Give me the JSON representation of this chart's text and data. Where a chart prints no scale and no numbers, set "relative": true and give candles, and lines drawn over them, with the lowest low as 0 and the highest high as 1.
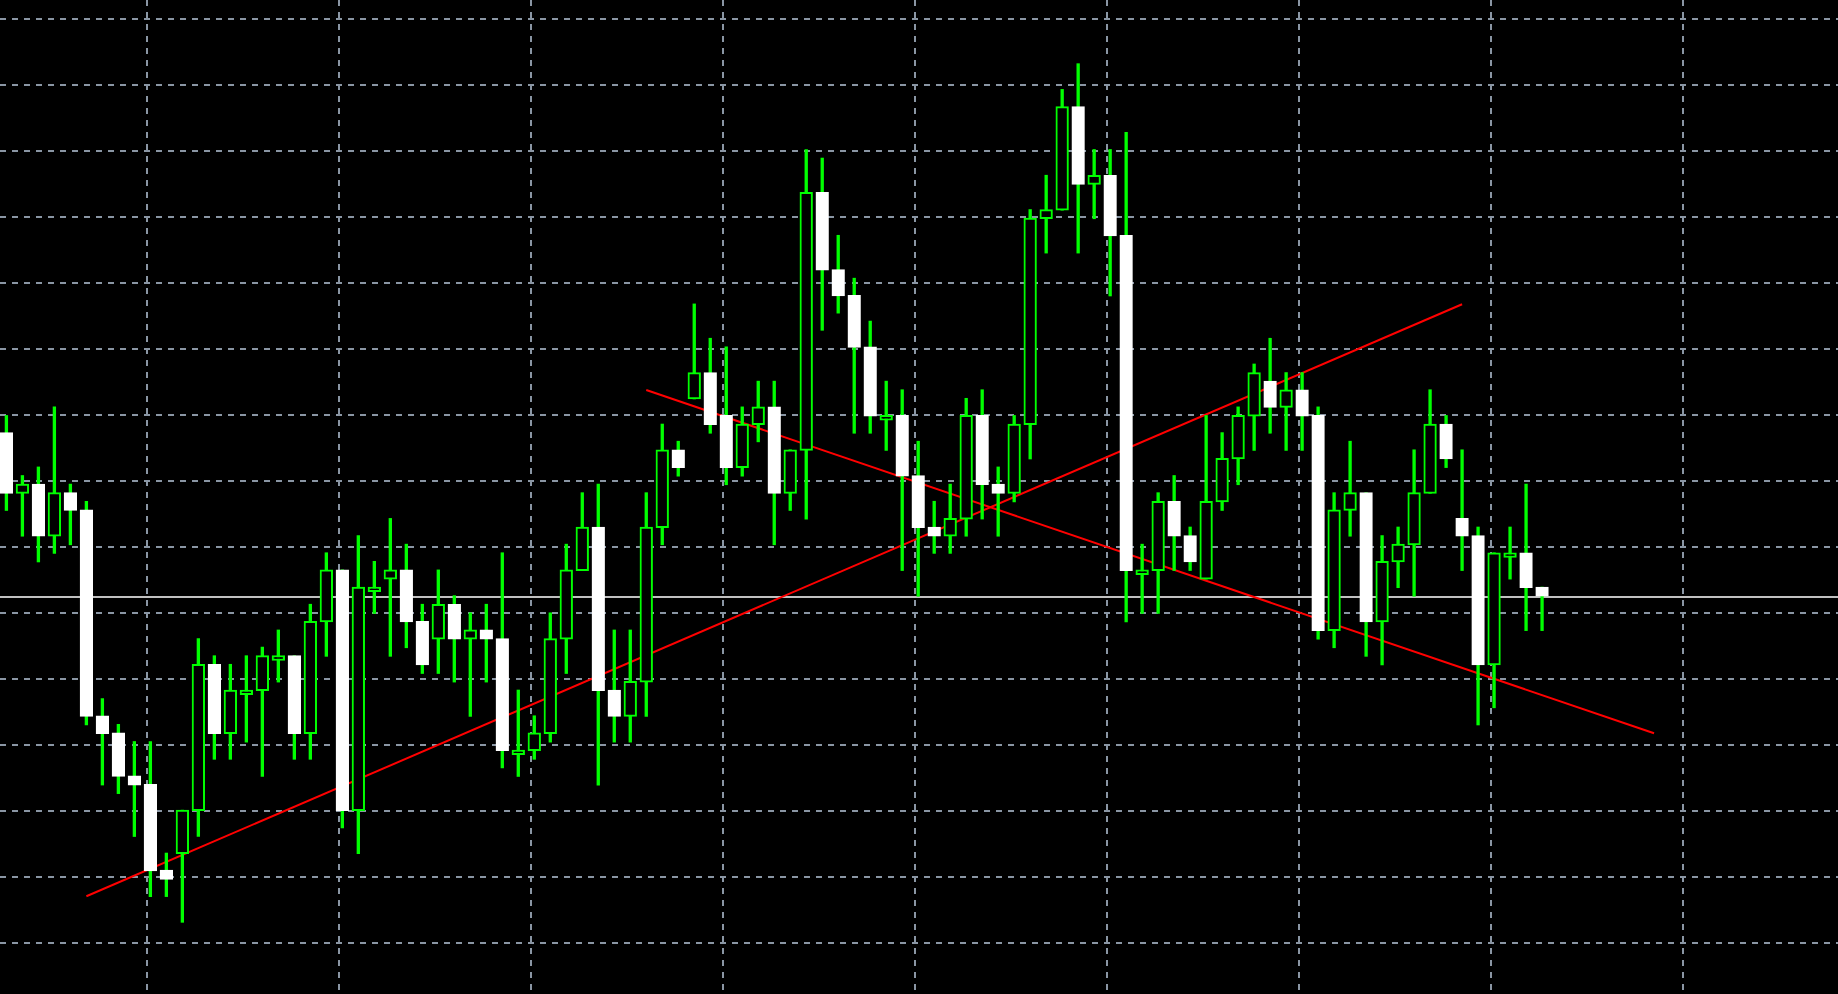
{
  "chart_data": {
    "type": "candlestick",
    "relative": true,
    "color": "#00ff00",
    "grid": true,
    "categories": [
      null,
      null,
      null,
      null,
      null,
      null,
      null,
      null,
      null,
      null,
      null,
      null,
      null,
      null,
      null,
      null,
      null,
      null,
      null,
      null,
      null,
      null,
      null,
      null,
      null,
      null,
      null,
      null,
      null,
      null,
      null,
      null,
      null,
      null,
      null,
      null,
      null,
      null,
      null,
      null,
      null,
      null,
      null,
      null,
      null,
      null,
      null,
      null,
      null,
      null,
      null,
      null,
      null,
      null,
      null,
      null,
      null,
      null,
      null,
      null,
      null,
      null,
      null,
      null,
      null,
      null,
      null,
      null,
      null,
      null,
      null,
      null,
      null,
      null,
      null,
      null,
      null,
      null,
      null,
      null,
      null,
      null,
      null,
      null,
      null,
      null,
      null,
      null,
      null,
      null,
      null,
      null,
      null,
      null,
      null,
      null,
      null,
      null,
      null,
      null,
      null,
      null,
      null,
      null,
      null,
      null,
      null,
      null,
      null,
      null,
      null,
      null,
      null,
      null,
      null
    ],
    "ohlc": [
      [
        0.57,
        0.59,
        0.48,
        0.5
      ],
      [
        0.5,
        0.52,
        0.45,
        0.51
      ],
      [
        0.51,
        0.53,
        0.42,
        0.45
      ],
      [
        0.45,
        0.6,
        0.43,
        0.5
      ],
      [
        0.5,
        0.51,
        0.44,
        0.48
      ],
      [
        0.48,
        0.49,
        0.23,
        0.24
      ],
      [
        0.24,
        0.26,
        0.16,
        0.22
      ],
      [
        0.22,
        0.23,
        0.15,
        0.17
      ],
      [
        0.17,
        0.21,
        0.1,
        0.16
      ],
      [
        0.16,
        0.21,
        0.03,
        0.06
      ],
      [
        0.06,
        0.08,
        0.03,
        0.05
      ],
      [
        0.08,
        0.13,
        0,
        0.13
      ],
      [
        0.13,
        0.33,
        0.1,
        0.3
      ],
      [
        0.3,
        0.31,
        0.19,
        0.22
      ],
      [
        0.22,
        0.3,
        0.19,
        0.27
      ],
      [
        0.27,
        0.31,
        0.21,
        0.27
      ],
      [
        0.27,
        0.32,
        0.17,
        0.31
      ],
      [
        0.31,
        0.34,
        0.28,
        0.31
      ],
      [
        0.31,
        0.31,
        0.19,
        0.22
      ],
      [
        0.22,
        0.37,
        0.19,
        0.35
      ],
      [
        0.35,
        0.43,
        0.31,
        0.41
      ],
      [
        0.41,
        0.41,
        0.11,
        0.13
      ],
      [
        0.13,
        0.45,
        0.08,
        0.39
      ],
      [
        0.39,
        0.42,
        0.36,
        0.39
      ],
      [
        0.4,
        0.47,
        0.31,
        0.41
      ],
      [
        0.41,
        0.44,
        0.32,
        0.35
      ],
      [
        0.35,
        0.37,
        0.29,
        0.3
      ],
      [
        0.33,
        0.41,
        0.29,
        0.37
      ],
      [
        0.37,
        0.38,
        0.28,
        0.33
      ],
      [
        0.33,
        0.36,
        0.24,
        0.34
      ],
      [
        0.34,
        0.37,
        0.28,
        0.33
      ],
      [
        0.33,
        0.43,
        0.18,
        0.2
      ],
      [
        0.2,
        0.27,
        0.17,
        0.2
      ],
      [
        0.2,
        0.24,
        0.19,
        0.22
      ],
      [
        0.22,
        0.36,
        0.21,
        0.33
      ],
      [
        0.33,
        0.44,
        0.29,
        0.41
      ],
      [
        0.41,
        0.5,
        0.41,
        0.46
      ],
      [
        0.46,
        0.51,
        0.16,
        0.27
      ],
      [
        0.27,
        0.34,
        0.21,
        0.24
      ],
      [
        0.24,
        0.34,
        0.21,
        0.28
      ],
      [
        0.28,
        0.5,
        0.24,
        0.46
      ],
      [
        0.46,
        0.58,
        0.44,
        0.55
      ],
      [
        0.55,
        0.56,
        0.52,
        0.53
      ],
      [
        0.61,
        0.72,
        0.61,
        0.64
      ],
      [
        0.64,
        0.68,
        0.57,
        0.58
      ],
      [
        0.59,
        0.67,
        0.51,
        0.53
      ],
      [
        0.53,
        0.6,
        0.52,
        0.58
      ],
      [
        0.58,
        0.63,
        0.56,
        0.6
      ],
      [
        0.6,
        0.63,
        0.44,
        0.5
      ],
      [
        0.5,
        0.55,
        0.48,
        0.55
      ],
      [
        0.55,
        0.9,
        0.47,
        0.85
      ],
      [
        0.85,
        0.89,
        0.69,
        0.76
      ],
      [
        0.76,
        0.8,
        0.71,
        0.73
      ],
      [
        0.73,
        0.75,
        0.57,
        0.67
      ],
      [
        0.67,
        0.7,
        0.57,
        0.59
      ],
      [
        0.59,
        0.63,
        0.55,
        0.59
      ],
      [
        0.59,
        0.62,
        0.41,
        0.52
      ],
      [
        0.52,
        0.56,
        0.38,
        0.46
      ],
      [
        0.46,
        0.49,
        0.43,
        0.45
      ],
      [
        0.45,
        0.51,
        0.43,
        0.47
      ],
      [
        0.47,
        0.61,
        0.45,
        0.59
      ],
      [
        0.59,
        0.62,
        0.47,
        0.51
      ],
      [
        0.51,
        0.53,
        0.45,
        0.5
      ],
      [
        0.5,
        0.59,
        0.49,
        0.58
      ],
      [
        0.58,
        0.83,
        0.54,
        0.82
      ],
      [
        0.82,
        0.87,
        0.78,
        0.83
      ],
      [
        0.83,
        0.97,
        0.83,
        0.95
      ],
      [
        0.95,
        1,
        0.78,
        0.86
      ],
      [
        0.86,
        0.9,
        0.82,
        0.87
      ],
      [
        0.87,
        0.9,
        0.73,
        0.8
      ],
      [
        0.8,
        0.92,
        0.35,
        0.41
      ],
      [
        0.41,
        0.44,
        0.36,
        0.41
      ],
      [
        0.41,
        0.5,
        0.36,
        0.49
      ],
      [
        0.49,
        0.52,
        0.41,
        0.45
      ],
      [
        0.45,
        0.46,
        0.41,
        0.42
      ],
      [
        0.4,
        0.59,
        0.4,
        0.49
      ],
      [
        0.49,
        0.57,
        0.48,
        0.54
      ],
      [
        0.54,
        0.6,
        0.51,
        0.59
      ],
      [
        0.59,
        0.65,
        0.55,
        0.64
      ],
      [
        0.63,
        0.68,
        0.57,
        0.6
      ],
      [
        0.6,
        0.64,
        0.55,
        0.62
      ],
      [
        0.62,
        0.64,
        0.55,
        0.59
      ],
      [
        0.59,
        0.6,
        0.33,
        0.34
      ],
      [
        0.34,
        0.5,
        0.32,
        0.48
      ],
      [
        0.48,
        0.56,
        0.45,
        0.5
      ],
      [
        0.5,
        0.5,
        0.31,
        0.35
      ],
      [
        0.35,
        0.45,
        0.3,
        0.42
      ],
      [
        0.42,
        0.46,
        0.39,
        0.44
      ],
      [
        0.44,
        0.55,
        0.38,
        0.5
      ],
      [
        0.5,
        0.62,
        0.5,
        0.58
      ],
      [
        0.58,
        0.59,
        0.53,
        0.54
      ],
      [
        0.47,
        0.55,
        0.41,
        0.45
      ],
      [
        0.45,
        0.46,
        0.23,
        0.3
      ],
      [
        0.3,
        0.43,
        0.25,
        0.43
      ],
      [
        0.43,
        0.46,
        0.4,
        0.43
      ],
      [
        0.43,
        0.51,
        0.34,
        0.39
      ],
      [
        0.39,
        0.39,
        0.34,
        0.38
      ],
      null,
      null,
      null,
      null,
      null,
      null,
      null,
      null,
      null,
      null,
      null,
      null,
      null,
      null,
      null,
      null,
      null,
      null
    ],
    "colors": [
      "#ffffff",
      "#00ff00",
      "#ffffff",
      "#00ff00",
      "#ffffff",
      "#ffffff",
      "#ffffff",
      "#ffffff",
      "#ffffff",
      "#ffffff",
      "#ffffff",
      "#00ff00",
      "#00ff00",
      "#ffffff",
      "#00ff00",
      "#00ff00",
      "#00ff00",
      "#00ff00",
      "#ffffff",
      "#00ff00",
      "#00ff00",
      "#ffffff",
      "#00ff00",
      "#00ff00",
      "#00ff00",
      "#ffffff",
      "#ffffff",
      "#00ff00",
      "#ffffff",
      "#00ff00",
      "#ffffff",
      "#ffffff",
      "#00ff00",
      "#00ff00",
      "#00ff00",
      "#00ff00",
      "#00ff00",
      "#ffffff",
      "#ffffff",
      "#00ff00",
      "#00ff00",
      "#00ff00",
      "#ffffff",
      "#00ff00",
      "#ffffff",
      "#ffffff",
      "#00ff00",
      "#00ff00",
      "#ffffff",
      "#00ff00",
      "#00ff00",
      "#ffffff",
      "#ffffff",
      "#ffffff",
      "#ffffff",
      "#00ff00",
      "#ffffff",
      "#ffffff",
      "#ffffff",
      "#00ff00",
      "#00ff00",
      "#ffffff",
      "#ffffff",
      "#00ff00",
      "#00ff00",
      "#00ff00",
      "#00ff00",
      "#ffffff",
      "#00ff00",
      "#ffffff",
      "#ffffff",
      "#00ff00",
      "#00ff00",
      "#ffffff",
      "#ffffff",
      "#00ff00",
      "#00ff00",
      "#00ff00",
      "#00ff00",
      "#ffffff",
      "#00ff00",
      "#ffffff",
      "#ffffff",
      "#00ff00",
      "#00ff00",
      "#ffffff",
      "#00ff00",
      "#00ff00",
      "#00ff00",
      "#00ff00",
      "#ffffff",
      "#ffffff",
      "#ffffff",
      "#00ff00",
      "#00ff00",
      "#ffffff",
      "#ffffff",
      null,
      null,
      null,
      null,
      null,
      null,
      null,
      null,
      null,
      null,
      null,
      null,
      null,
      null,
      null,
      null,
      null,
      null
    ],
    "series": [
      {
        "type": "line",
        "values": [
          null,
          null,
          null,
          null,
          null,
          0.03,
          null,
          null,
          null,
          null,
          null,
          null,
          null,
          null,
          null,
          null,
          null,
          null,
          null,
          null,
          null,
          null,
          null,
          null,
          null,
          null,
          null,
          null,
          null,
          null,
          null,
          null,
          null,
          null,
          null,
          null,
          null,
          null,
          null,
          null,
          null,
          null,
          null,
          null,
          null,
          null,
          null,
          null,
          null,
          null,
          null,
          null,
          null,
          null,
          null,
          null,
          null,
          null,
          null,
          null,
          null,
          null,
          null,
          null,
          null,
          null,
          null,
          null,
          null,
          null,
          null,
          null,
          null,
          null,
          null,
          null,
          null,
          null,
          null,
          null,
          null,
          null,
          null,
          null,
          null,
          null,
          null,
          null,
          null,
          null,
          null,
          0.72,
          null,
          null,
          null,
          null,
          null,
          null,
          null,
          null,
          null,
          null,
          null,
          null,
          null,
          null,
          null,
          null,
          null,
          null,
          null,
          null,
          null,
          null,
          null
        ],
        "color": "#ff0000"
      },
      {
        "type": "line",
        "values": [
          null,
          null,
          null,
          null,
          null,
          null,
          null,
          null,
          null,
          null,
          null,
          null,
          null,
          null,
          null,
          null,
          null,
          null,
          null,
          null,
          null,
          null,
          null,
          null,
          null,
          null,
          null,
          null,
          null,
          null,
          null,
          null,
          null,
          null,
          null,
          null,
          null,
          null,
          null,
          null,
          0.62,
          null,
          null,
          null,
          null,
          null,
          null,
          null,
          null,
          null,
          null,
          null,
          null,
          null,
          null,
          null,
          null,
          null,
          null,
          null,
          null,
          null,
          null,
          null,
          null,
          null,
          null,
          null,
          null,
          null,
          null,
          null,
          null,
          null,
          null,
          null,
          null,
          null,
          null,
          null,
          null,
          null,
          null,
          null,
          null,
          null,
          null,
          null,
          null,
          null,
          null,
          null,
          null,
          null,
          null,
          null,
          null,
          null,
          null,
          null,
          null,
          null,
          null,
          0.22,
          null,
          null,
          null,
          null,
          null,
          null,
          null,
          null,
          null,
          null,
          null
        ],
        "color": "#ff0000"
      }
    ],
    "ref_lines": [
      {
        "axis": "y",
        "value": 0.38,
        "color": "#c0c0c0"
      }
    ]
  }
}
